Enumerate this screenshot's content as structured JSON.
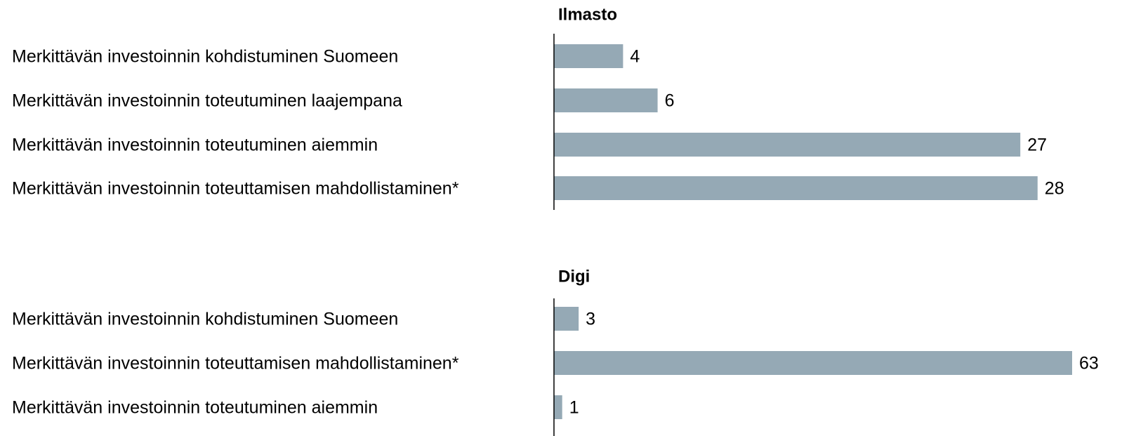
{
  "chart_data": [
    {
      "type": "bar",
      "orientation": "horizontal",
      "title": "Ilmasto",
      "categories": [
        "Merkittävän investoinnin kohdistuminen Suomeen",
        "Merkittävän investoinnin toteutuminen laajempana",
        "Merkittävän investoinnin toteutuminen aiemmin",
        "Merkittävän investoinnin toteuttamisen mahdollistaminen*"
      ],
      "values": [
        4,
        6,
        27,
        28
      ],
      "color": "#95a9b5",
      "xlim": [
        0,
        30
      ]
    },
    {
      "type": "bar",
      "orientation": "horizontal",
      "title": "Digi",
      "categories": [
        "Merkittävän investoinnin kohdistuminen Suomeen",
        "Merkittävän investoinnin toteuttamisen mahdollistaminen*",
        "Merkittävän investoinnin toteutuminen aiemmin"
      ],
      "values": [
        3,
        63,
        1
      ],
      "color": "#95a9b5",
      "xlim": [
        0,
        63
      ]
    }
  ]
}
